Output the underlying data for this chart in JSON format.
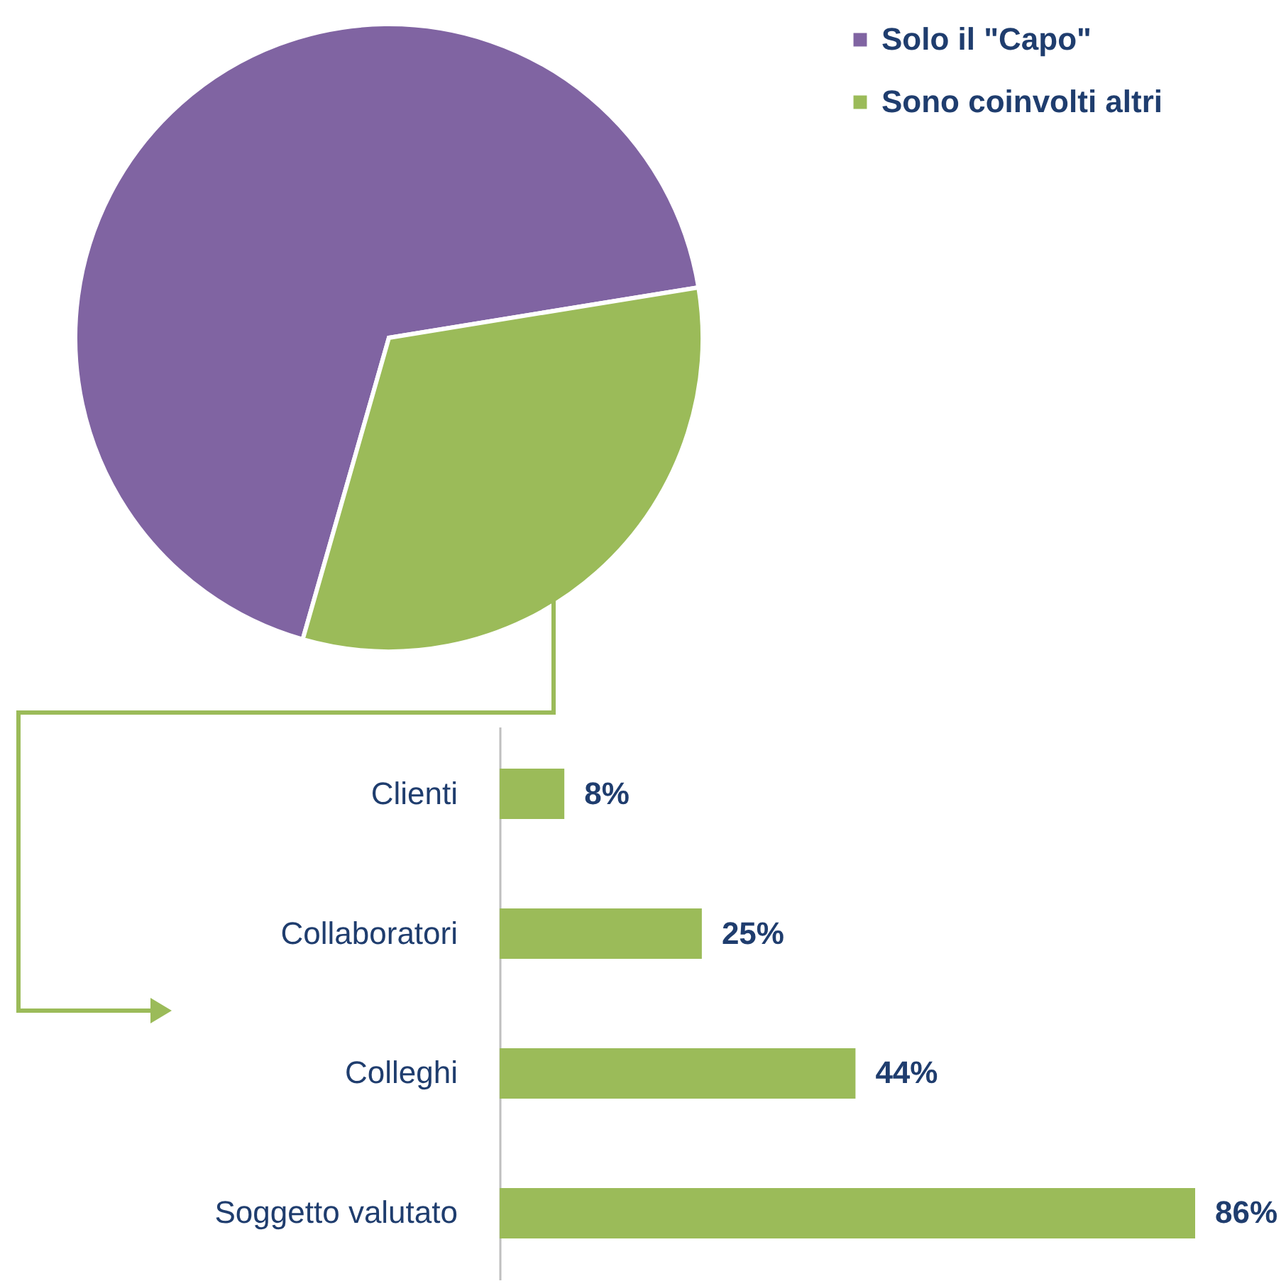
{
  "chart_data": [
    {
      "type": "pie",
      "categories": [
        "Solo il \"Capo\"",
        "Sono coinvolti altri"
      ],
      "values": [
        68,
        32
      ],
      "colors": [
        "#8064a2",
        "#9bbb59"
      ],
      "legend": "right"
    },
    {
      "type": "bar",
      "orientation": "horizontal",
      "categories": [
        "Clienti",
        "Collaboratori",
        "Colleghi",
        "Soggetto valutato"
      ],
      "values": [
        8,
        25,
        44,
        86
      ],
      "color": "#9bbb59",
      "value_labels": [
        "8%",
        "25%",
        "44%",
        "86%"
      ]
    }
  ]
}
